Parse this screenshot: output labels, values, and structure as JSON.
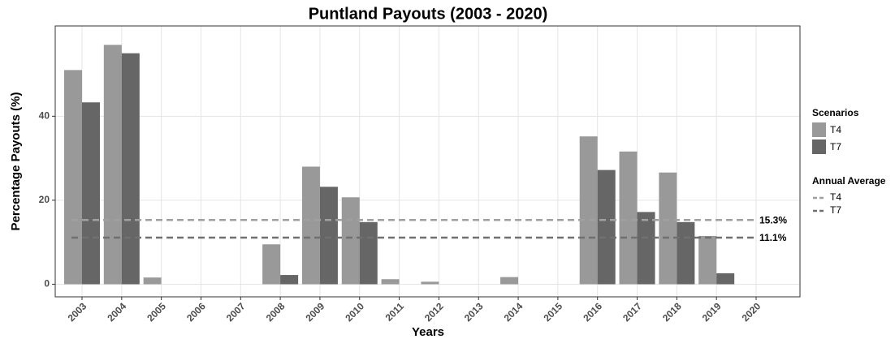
{
  "chart_data": {
    "type": "bar",
    "title": "Puntland Payouts (2003 - 2020)",
    "x_label": "Years",
    "y_label": "Percentage Payouts (%)",
    "categories": [
      "2003",
      "2004",
      "2005",
      "2006",
      "2007",
      "2008",
      "2009",
      "2010",
      "2011",
      "2012",
      "2013",
      "2014",
      "2015",
      "2016",
      "2017",
      "2018",
      "2019",
      "2020"
    ],
    "legend_title": "Scenarios",
    "series": [
      {
        "name": "T4",
        "color": "#999999",
        "values": [
          51,
          57,
          1.6,
          0,
          0,
          9.5,
          28,
          20.7,
          1.2,
          0.6,
          0,
          1.7,
          0,
          35.2,
          31.6,
          26.6,
          11.5,
          0
        ]
      },
      {
        "name": "T7",
        "color": "#666666",
        "values": [
          43.3,
          55,
          0,
          0,
          0,
          2.2,
          23.2,
          14.8,
          0,
          0,
          0,
          0,
          0,
          27.2,
          17.2,
          14.8,
          2.6,
          0
        ]
      }
    ],
    "average_lines": {
      "title": "Annual Average",
      "series": [
        {
          "name": "T4",
          "color": "#a0a0a0",
          "value": 15.3,
          "value_label": "15.3%"
        },
        {
          "name": "T7",
          "color": "#707070",
          "value": 11.1,
          "value_label": "11.1%"
        }
      ]
    },
    "ylim": [
      -3,
      61.5
    ],
    "yticks": [
      0,
      20,
      40
    ],
    "grid": true
  }
}
